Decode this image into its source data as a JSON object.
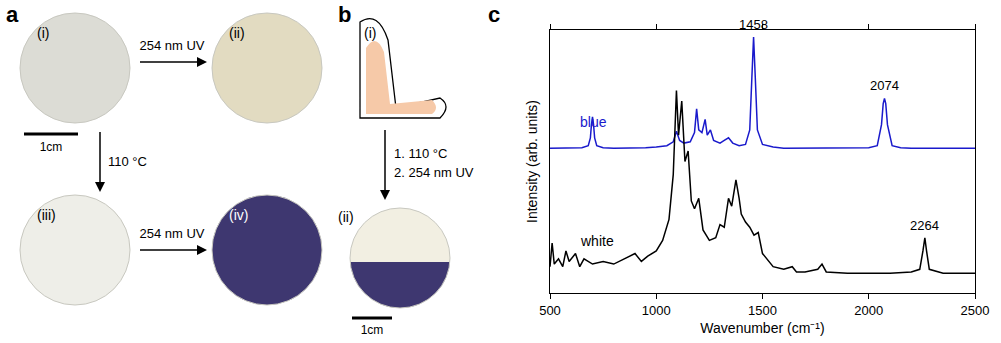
{
  "panel_a": {
    "letter": "a",
    "scale_bar": "1cm",
    "samples": [
      {
        "label": "(i)",
        "color": "#dcdcd5"
      },
      {
        "label": "(ii)",
        "color": "#e2dbc1"
      },
      {
        "label": "(iii)",
        "color": "#eeeee8"
      },
      {
        "label": "(iv)",
        "color": "#3e3770"
      }
    ],
    "arrows": [
      {
        "from": "(i)",
        "to": "(ii)",
        "label": "254 nm UV"
      },
      {
        "from": "(i)",
        "to": "(iii)",
        "label": "110 °C"
      },
      {
        "from": "(iii)",
        "to": "(iv)",
        "label": "254 nm UV"
      }
    ]
  },
  "panel_b": {
    "letter": "b",
    "scale_bar": "1cm",
    "items": [
      {
        "label": "(i)",
        "color": "#f6c9a8"
      },
      {
        "label": "(ii)",
        "colors": [
          "#f2efe2",
          "#3e3770"
        ]
      }
    ],
    "arrow_labels": [
      "1. 110 °C",
      "2. 254 nm UV"
    ]
  },
  "chart_data": {
    "letter": "c",
    "type": "line",
    "x_label": "Wavenumber (cm⁻¹)",
    "y_label": "Intensity (arb. units)",
    "xlim": [
      500,
      2500
    ],
    "xticks": [
      500,
      1000,
      1500,
      2000,
      2500
    ],
    "ylim": [
      0,
      10
    ],
    "yticks": [],
    "tick_labels": "x",
    "grid": false,
    "series": [
      {
        "name": "blue",
        "color": "#1a1acc",
        "peaks": [
          1458,
          2074
        ],
        "x": [
          500,
          550,
          600,
          650,
          680,
          690,
          695,
          700,
          705,
          710,
          720,
          750,
          800,
          850,
          900,
          950,
          1000,
          1050,
          1080,
          1095,
          1110,
          1130,
          1160,
          1180,
          1190,
          1200,
          1215,
          1230,
          1240,
          1255,
          1270,
          1300,
          1320,
          1340,
          1360,
          1390,
          1420,
          1440,
          1450,
          1458,
          1466,
          1476,
          1500,
          1550,
          1600,
          1700,
          1800,
          1900,
          2000,
          2040,
          2060,
          2068,
          2074,
          2080,
          2088,
          2110,
          2150,
          2200,
          2300,
          2400,
          2500
        ],
        "values": [
          5.5,
          5.5,
          5.5,
          5.52,
          5.6,
          5.9,
          6.4,
          6.7,
          6.4,
          5.9,
          5.6,
          5.52,
          5.5,
          5.5,
          5.5,
          5.52,
          5.55,
          5.6,
          5.75,
          6.15,
          5.8,
          5.7,
          5.75,
          6.1,
          7.0,
          6.2,
          6.1,
          6.6,
          6.0,
          6.2,
          5.8,
          5.7,
          5.8,
          5.9,
          5.7,
          5.6,
          5.65,
          6.2,
          8.2,
          9.73,
          8.2,
          6.2,
          5.65,
          5.55,
          5.5,
          5.5,
          5.5,
          5.5,
          5.52,
          5.6,
          6.4,
          7.2,
          7.4,
          7.2,
          6.4,
          5.6,
          5.52,
          5.5,
          5.5,
          5.5,
          5.5
        ]
      },
      {
        "name": "white",
        "color": "#000000",
        "peaks": [
          2264
        ],
        "x": [
          500,
          510,
          520,
          540,
          560,
          575,
          590,
          620,
          640,
          660,
          700,
          750,
          800,
          850,
          900,
          930,
          960,
          1000,
          1030,
          1060,
          1080,
          1095,
          1105,
          1120,
          1135,
          1150,
          1165,
          1180,
          1200,
          1220,
          1250,
          1280,
          1300,
          1320,
          1340,
          1355,
          1375,
          1390,
          1400,
          1420,
          1440,
          1460,
          1480,
          1500,
          1550,
          1600,
          1640,
          1660,
          1700,
          1760,
          1780,
          1800,
          1900,
          2000,
          2100,
          2200,
          2240,
          2255,
          2264,
          2272,
          2285,
          2350,
          2400,
          2500
        ],
        "values": [
          1.0,
          1.9,
          1.1,
          1.3,
          1.0,
          1.6,
          1.2,
          1.5,
          1.0,
          1.3,
          1.1,
          1.2,
          1.1,
          1.3,
          1.5,
          1.2,
          1.4,
          1.6,
          2.0,
          2.8,
          4.5,
          7.7,
          6.0,
          7.3,
          5.0,
          5.4,
          3.5,
          3.2,
          3.6,
          2.4,
          2.0,
          2.1,
          2.6,
          2.5,
          3.6,
          3.3,
          4.3,
          3.6,
          3.0,
          2.7,
          2.5,
          2.2,
          2.3,
          1.5,
          1.0,
          0.9,
          1.0,
          0.8,
          0.8,
          0.9,
          1.1,
          0.8,
          0.75,
          0.75,
          0.75,
          0.8,
          0.9,
          1.6,
          2.1,
          1.6,
          0.9,
          0.75,
          0.75,
          0.75
        ]
      }
    ]
  }
}
